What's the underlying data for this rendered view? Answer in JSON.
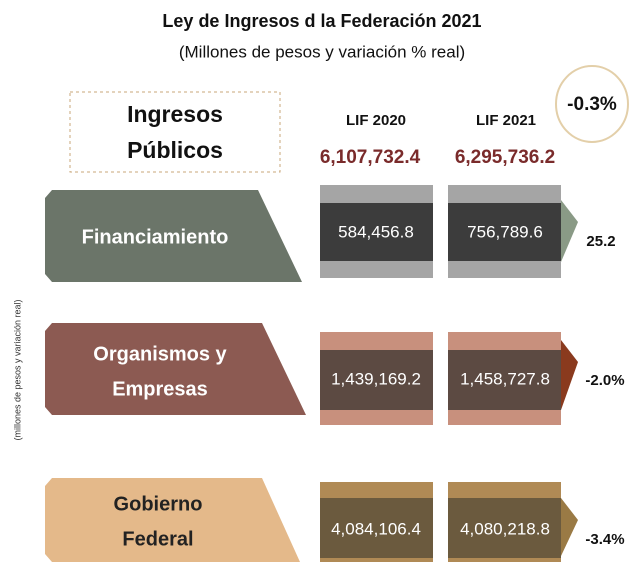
{
  "title": "Ley de Ingresos d la Federación 2021",
  "subtitle": "(Millones de pesos y variación % real)",
  "side_label": "(millones de pesos y variación real)",
  "header": {
    "label_lines": [
      "Ingresos",
      "Públicos"
    ],
    "columns": [
      "LIF 2020",
      "LIF 2021"
    ],
    "totals": [
      "6,107,732.4",
      "6,295,736.2"
    ],
    "change": "-0.3%"
  },
  "rows": [
    {
      "label_lines": [
        "Financiamiento"
      ],
      "values": [
        "584,456.8",
        "756,789.6"
      ],
      "change": "25.2"
    },
    {
      "label_lines": [
        "Organismos y",
        "Empresas"
      ],
      "values": [
        "1,439,169.2",
        "1,458,727.8"
      ],
      "change": "-2.0%"
    },
    {
      "label_lines": [
        "Gobierno",
        "Federal"
      ],
      "values": [
        "4,084,106.4",
        "4,080,218.8"
      ],
      "change": "-3.4%"
    }
  ]
}
